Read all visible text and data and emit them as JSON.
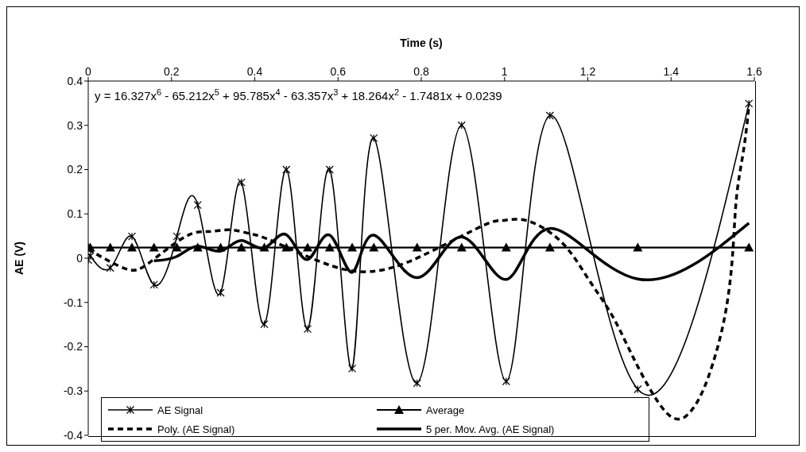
{
  "chart_data": {
    "type": "line",
    "xlabel": "Time (s)",
    "ylabel": "AE (V)",
    "xlim": [
      0,
      1.6
    ],
    "xticks": [
      0,
      0.2,
      0.4,
      0.6,
      0.8,
      1,
      1.2,
      1.4,
      1.6
    ],
    "ylim": [
      -0.4,
      0.4
    ],
    "yticks": [
      -0.4,
      -0.3,
      -0.2,
      -0.1,
      0,
      0.1,
      0.2,
      0.3,
      0.4
    ],
    "legend": "bottom left",
    "annotations": [
      "y = 16.327x$^{6}$ - 65.212x$^{5}$ + 95.785x$^{4}$ - 63.357x$^{3}$ + 18.264x$^{2}$ - 1.7481x + 0.0239"
    ],
    "series": [
      {
        "name": "AE Signal",
        "color": "#000000",
        "marker": "cross",
        "line_style": "solid",
        "x": [
          0,
          0.005,
          0.053,
          0.105,
          0.158,
          0.213,
          0.263,
          0.318,
          0.368,
          0.423,
          0.476,
          0.527,
          0.58,
          0.634,
          0.686,
          0.79,
          0.897,
          1.004,
          1.109,
          1.32,
          1.587
        ],
        "values": [
          -0.004,
          0.005,
          -0.022,
          0.049,
          -0.06,
          0.049,
          0.12,
          -0.078,
          0.171,
          -0.149,
          0.2,
          -0.16,
          0.2,
          -0.249,
          0.271,
          -0.282,
          0.3,
          -0.278,
          0.322,
          -0.296,
          0.349
        ]
      },
      {
        "name": "Average",
        "color": "#000000",
        "marker": "triangle",
        "line_style": "solid",
        "x": [
          0,
          0.005,
          0.053,
          0.105,
          0.158,
          0.213,
          0.263,
          0.318,
          0.368,
          0.423,
          0.476,
          0.527,
          0.58,
          0.634,
          0.686,
          0.79,
          0.897,
          1.004,
          1.109,
          1.32,
          1.587
        ],
        "values": [
          0.024,
          0.024,
          0.024,
          0.024,
          0.024,
          0.024,
          0.024,
          0.024,
          0.024,
          0.024,
          0.024,
          0.024,
          0.024,
          0.024,
          0.024,
          0.024,
          0.024,
          0.024,
          0.024,
          0.024,
          0.024
        ]
      },
      {
        "name": "Poly. (AE Signal)",
        "color": "#000000",
        "marker": "none",
        "line_style": "dashed",
        "x": [
          0,
          0.09,
          0.147,
          0.234,
          0.29,
          0.34,
          0.39,
          0.444,
          0.587,
          0.69,
          0.794,
          0.947,
          0.996,
          1.053,
          1.137,
          1.2,
          1.257,
          1.309,
          1.39,
          1.448,
          1.49,
          1.53,
          1.549,
          1.558,
          1.575,
          1.587
        ],
        "values": [
          0.02,
          -0.024,
          -0.01,
          0.049,
          0.06,
          0.064,
          0.055,
          0.038,
          -0.018,
          -0.029,
          0.002,
          0.073,
          0.085,
          0.085,
          0.036,
          -0.045,
          -0.127,
          -0.224,
          -0.35,
          -0.345,
          -0.267,
          -0.127,
          0.024,
          0.145,
          0.249,
          0.345
        ]
      },
      {
        "name": "5 per. Mov. Avg. (AE Signal)",
        "color": "#000000",
        "marker": "none",
        "line_style": "solid",
        "x": [
          0.158,
          0.213,
          0.263,
          0.318,
          0.368,
          0.423,
          0.476,
          0.527,
          0.58,
          0.634,
          0.686,
          0.79,
          0.897,
          1.004,
          1.109,
          1.32,
          1.587
        ],
        "values": [
          -0.006,
          0.004,
          0.027,
          0.016,
          0.04,
          0.023,
          0.053,
          -0.003,
          0.052,
          -0.032,
          0.052,
          -0.044,
          0.048,
          -0.048,
          0.067,
          -0.047,
          0.079
        ]
      }
    ]
  }
}
